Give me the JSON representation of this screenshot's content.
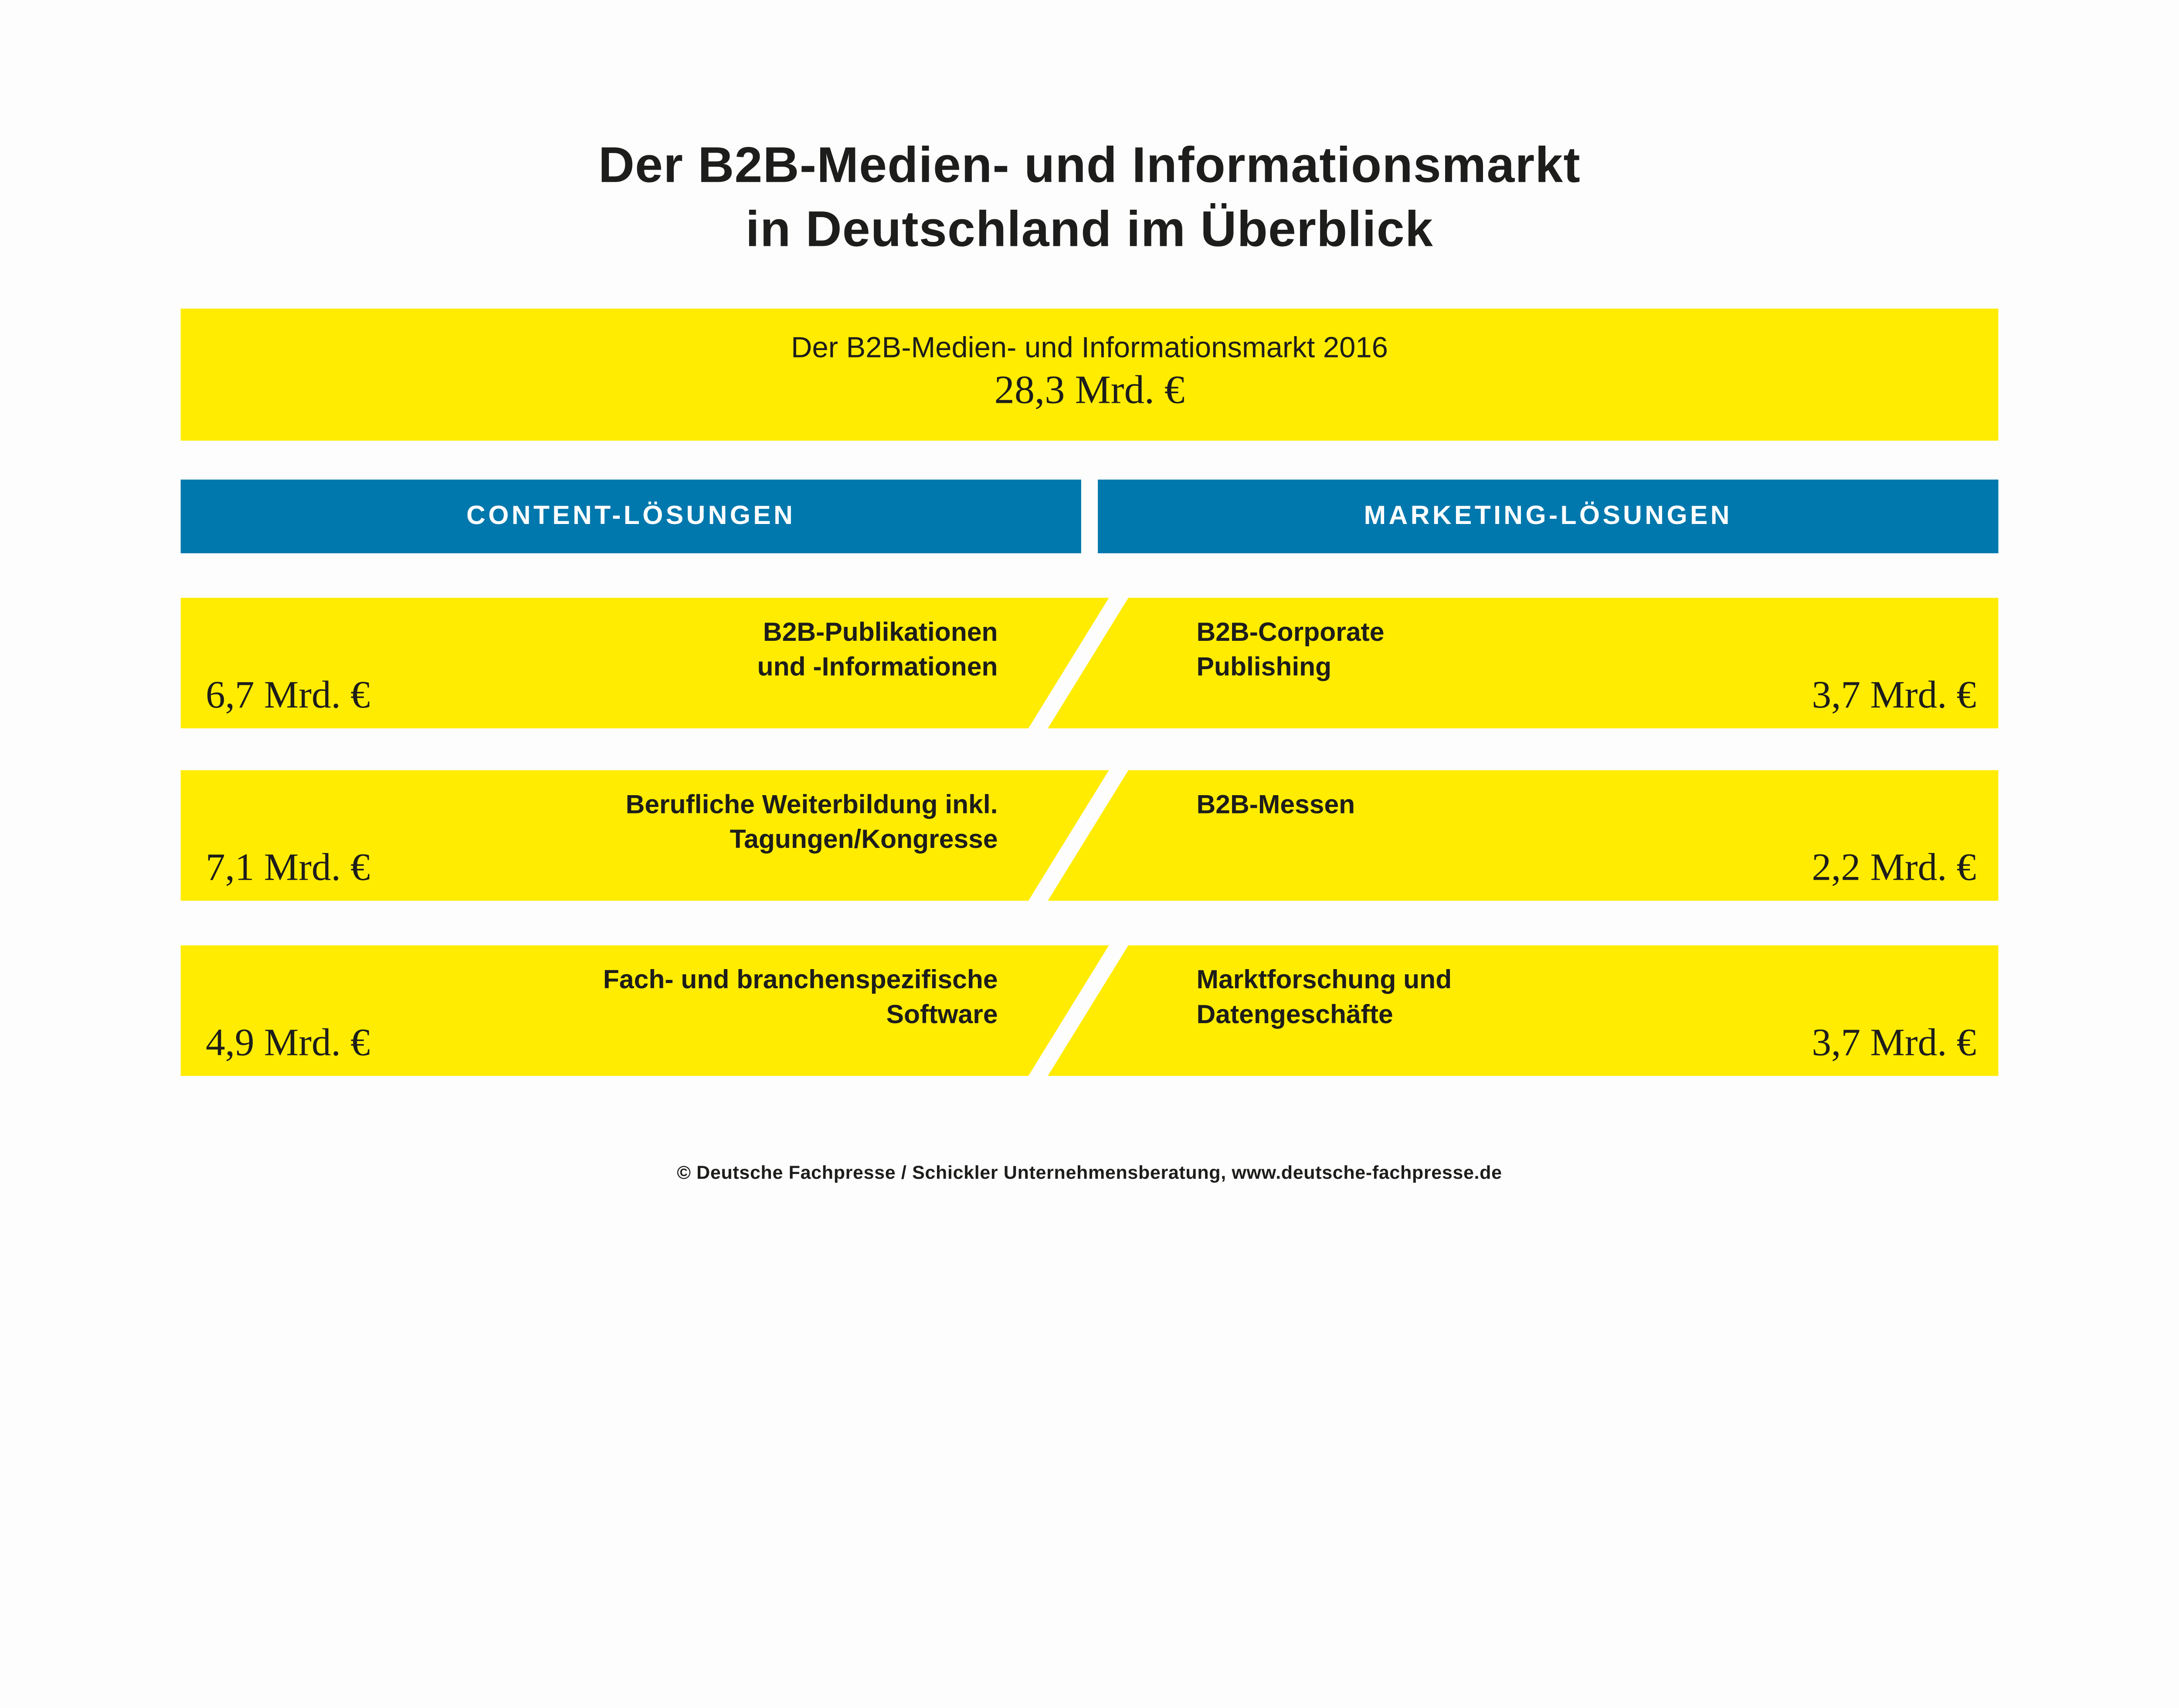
{
  "title": {
    "line1": "Der B2B-Medien- und Informationsmarkt",
    "line2": "in Deutschland im Überblick"
  },
  "total": {
    "label": "Der B2B-Medien- und Informationsmarkt 2016",
    "value": "28,3 Mrd. €"
  },
  "columns": {
    "left": "CONTENT-LÖSUNGEN",
    "right": "MARKETING-LÖSUNGEN"
  },
  "rows": [
    {
      "left": {
        "line1": "B2B-Publikationen",
        "line2": "und -Informationen",
        "value": "6,7 Mrd. €"
      },
      "right": {
        "line1": "B2B-Corporate",
        "line2": "Publishing",
        "value": "3,7 Mrd. €"
      }
    },
    {
      "left": {
        "line1": "Berufliche Weiterbildung inkl.",
        "line2": "Tagungen/Kongresse",
        "value": "7,1 Mrd. €"
      },
      "right": {
        "line1": "B2B-Messen",
        "line2": "",
        "value": "2,2 Mrd. €"
      }
    },
    {
      "left": {
        "line1": "Fach- und branchenspezifische",
        "line2": "Software",
        "value": "4,9 Mrd. €"
      },
      "right": {
        "line1": "Marktforschung und",
        "line2": "Datengeschäfte",
        "value": "3,7 Mrd. €"
      }
    }
  ],
  "footer": {
    "text": "© Deutsche Fachpresse / Schickler Unternehmensberatung, www.deutsche-fachpresse.de"
  },
  "colors": {
    "yellow": "#FFEC00",
    "blue": "#0078AD",
    "text": "#1D1D1B",
    "background": "#FDFDFD",
    "header_text": "#FFFFFF"
  },
  "chart_data": {
    "type": "table",
    "title": "Der B2B-Medien- und Informationsmarkt in Deutschland im Überblick",
    "unit": "Mrd. €",
    "total": {
      "label": "Der B2B-Medien- und Informationsmarkt 2016",
      "value_mrd_eur": 28.3
    },
    "series": [
      {
        "name": "Content-Lösungen",
        "categories": [
          "B2B-Publikationen und -Informationen",
          "Berufliche Weiterbildung inkl. Tagungen/Kongresse",
          "Fach- und branchenspezifische Software"
        ],
        "values_mrd_eur": [
          6.7,
          7.1,
          4.9
        ]
      },
      {
        "name": "Marketing-Lösungen",
        "categories": [
          "B2B-Corporate Publishing",
          "B2B-Messen",
          "Marktforschung und Datengeschäfte"
        ],
        "values_mrd_eur": [
          3.7,
          2.2,
          3.7
        ]
      }
    ],
    "legend_position": "none",
    "grid": false
  }
}
